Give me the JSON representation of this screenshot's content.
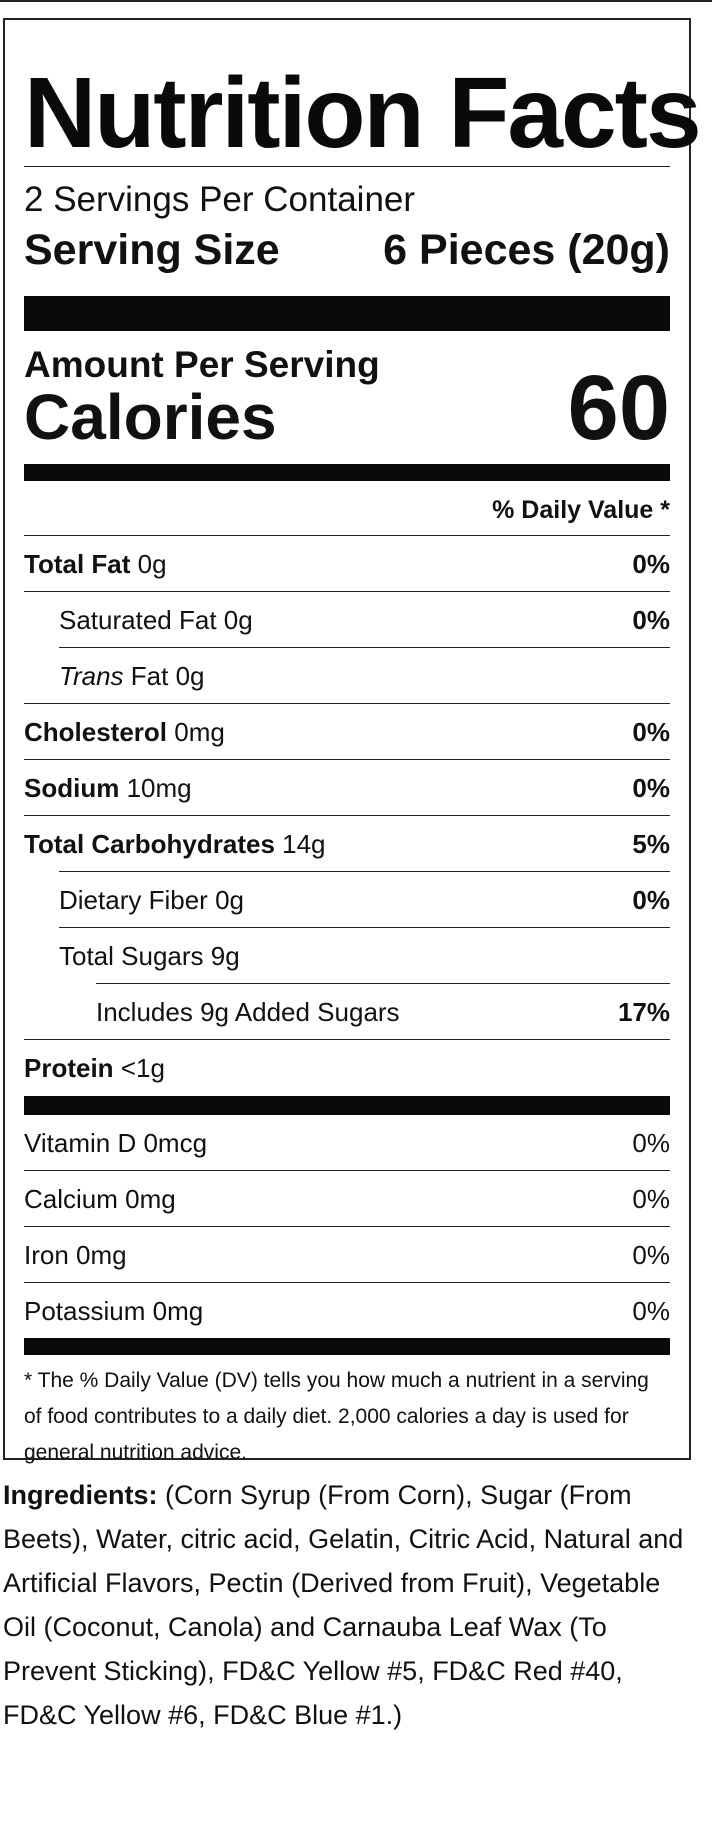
{
  "title": "Nutrition Facts",
  "servings_per_container": "2 Servings Per Container",
  "serving_size": {
    "label": "Serving Size",
    "value": "6 Pieces (20g)"
  },
  "amount_per_serving": "Amount Per Serving",
  "calories": {
    "label": "Calories",
    "value": "60"
  },
  "daily_value_header": "% Daily Value *",
  "nutrients": [
    {
      "name": "Total Fat",
      "amount": "0g",
      "dv": "0%"
    },
    {
      "name": "Saturated Fat",
      "amount": "0g",
      "dv": "0%"
    },
    {
      "name": "Trans",
      "suffix": "Fat",
      "amount": "0g",
      "dv": ""
    },
    {
      "name": "Cholesterol",
      "amount": "0mg",
      "dv": "0%"
    },
    {
      "name": "Sodium",
      "amount": "10mg",
      "dv": "0%"
    },
    {
      "name": "Total Carbohydrates",
      "amount": "14g",
      "dv": "5%"
    },
    {
      "name": "Dietary Fiber",
      "amount": "0g",
      "dv": "0%"
    },
    {
      "name": "Total Sugars",
      "amount": "9g",
      "dv": ""
    },
    {
      "name": "Includes 9g Added Sugars",
      "amount": "",
      "dv": "17%"
    },
    {
      "name": "Protein",
      "amount": "<1g",
      "dv": ""
    }
  ],
  "vitamins": [
    {
      "name": "Vitamin D",
      "amount": "0mcg",
      "dv": "0%"
    },
    {
      "name": "Calcium",
      "amount": "0mg",
      "dv": "0%"
    },
    {
      "name": "Iron",
      "amount": "0mg",
      "dv": "0%"
    },
    {
      "name": "Potassium",
      "amount": "0mg",
      "dv": "0%"
    }
  ],
  "footnote": "* The % Daily Value (DV) tells you how much a nutrient in a serving of food contributes to a daily diet. 2,000 calories a day is used for general nutrition advice.",
  "ingredients": {
    "label": "Ingredients:",
    "text": "(Corn Syrup (From Corn), Sugar (From Beets), Water, citric acid, Gelatin, Citric Acid, Natural and Artificial Flavors, Pectin (Derived from Fruit), Vegetable Oil (Coconut, Canola) and Carnauba Leaf Wax (To Prevent Sticking), FD&C Yellow #5, FD&C Red #40, FD&C Yellow #6, FD&C Blue #1.)"
  }
}
